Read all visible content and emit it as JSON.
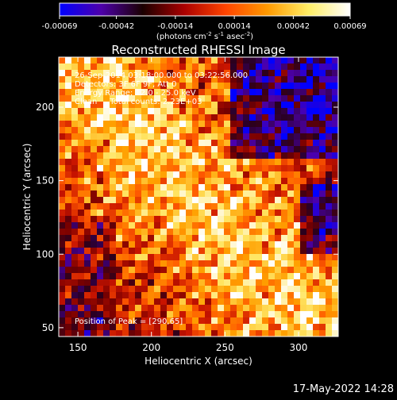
{
  "chart_data": {
    "type": "heatmap",
    "title": "Reconstructed RHESSI Image",
    "xlabel": "Heliocentric X (arcsec)",
    "ylabel": "Heliocentric Y (arcsec)",
    "xlim": [
      137,
      327
    ],
    "ylim": [
      44,
      234
    ],
    "x_ticks": [
      150,
      200,
      250,
      300
    ],
    "y_ticks": [
      50,
      100,
      150,
      200
    ],
    "colorbar": {
      "range": [
        -0.00069,
        0.00069
      ],
      "tick_labels": [
        "-0.00069",
        "-0.00042",
        "-0.00014",
        "0.00014",
        "0.00042",
        "0.00069"
      ],
      "tick_values": [
        -0.00069,
        -0.00042,
        -0.00014,
        0.00014,
        0.00042,
        0.00069
      ],
      "unit_label": "(photons cm",
      "unit_sup1": "-2",
      "unit_mid1": " s",
      "unit_sup2": "-1",
      "unit_mid2": " asec",
      "unit_sup3": "-2",
      "unit_end": ")",
      "colors": [
        "#0000ff",
        "#4d00aa",
        "#1a0000",
        "#aa0000",
        "#ff4400",
        "#ff9900",
        "#ffee66",
        "#ffffff"
      ]
    },
    "annotations": [
      "26-Sep-2014 03:18:00.000 to 03:22:56.000",
      "Detectors: 3F 6F 9F, Att 0",
      "Energy Range: 12.0 - 25.0 keV",
      "Clean     Total counts: 2.23E+03"
    ],
    "peak_label": "Position of Peak = [290,65]",
    "peak": [
      290,
      65
    ],
    "grid": false,
    "legend": "colorbar top"
  },
  "footer_date": "17-May-2022 14:28"
}
